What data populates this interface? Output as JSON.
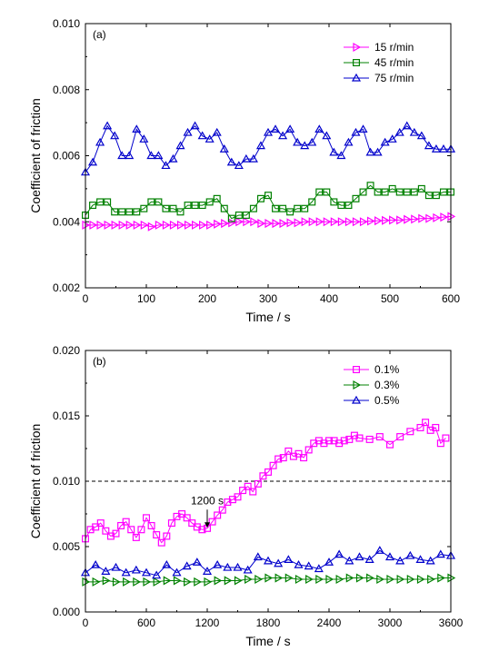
{
  "chart_data": [
    {
      "type": "line",
      "panel_label": "(a)",
      "xlabel": "Time / s",
      "ylabel": "Coefficient of friction",
      "xlim": [
        0,
        600
      ],
      "ylim": [
        0.002,
        0.01
      ],
      "xticks": [
        0,
        100,
        200,
        300,
        400,
        500,
        600
      ],
      "yticks": [
        0.002,
        0.004,
        0.006,
        0.008,
        0.01
      ],
      "ytick_labels": [
        "0.002",
        "0.004",
        "0.006",
        "0.008",
        "0.010"
      ],
      "legend_position": "top-right",
      "x": [
        0,
        12,
        24,
        36,
        48,
        60,
        72,
        84,
        96,
        108,
        120,
        132,
        144,
        156,
        168,
        180,
        192,
        204,
        216,
        228,
        240,
        252,
        264,
        276,
        288,
        300,
        312,
        324,
        336,
        348,
        360,
        372,
        384,
        396,
        408,
        420,
        432,
        444,
        456,
        468,
        480,
        492,
        504,
        516,
        528,
        540,
        552,
        564,
        576,
        588,
        600
      ],
      "series": [
        {
          "name": "15 r/min",
          "color": "#ff00ff",
          "marker": "triangle-right",
          "values": [
            0.0039,
            0.0039,
            0.0039,
            0.0039,
            0.0039,
            0.0039,
            0.0039,
            0.0039,
            0.0039,
            0.00385,
            0.0039,
            0.0039,
            0.0039,
            0.0039,
            0.0039,
            0.0039,
            0.0039,
            0.0039,
            0.00393,
            0.00395,
            0.00397,
            0.004,
            0.004,
            0.004,
            0.00395,
            0.00395,
            0.00395,
            0.00395,
            0.00397,
            0.00397,
            0.004,
            0.004,
            0.004,
            0.004,
            0.004,
            0.004,
            0.004,
            0.004,
            0.004,
            0.00402,
            0.00403,
            0.00404,
            0.00405,
            0.00405,
            0.00407,
            0.00408,
            0.0041,
            0.0041,
            0.00412,
            0.00414,
            0.00416
          ]
        },
        {
          "name": "45 r/min",
          "color": "#008000",
          "marker": "square",
          "values": [
            0.0042,
            0.0045,
            0.0046,
            0.0046,
            0.0043,
            0.0043,
            0.0043,
            0.0043,
            0.0044,
            0.0046,
            0.0046,
            0.0044,
            0.0044,
            0.0043,
            0.0045,
            0.0045,
            0.0045,
            0.0046,
            0.0047,
            0.0044,
            0.0041,
            0.0042,
            0.0042,
            0.0044,
            0.0047,
            0.0048,
            0.0044,
            0.0044,
            0.0043,
            0.0044,
            0.0044,
            0.0046,
            0.0049,
            0.0049,
            0.0046,
            0.0045,
            0.0045,
            0.0047,
            0.0049,
            0.0051,
            0.0049,
            0.0049,
            0.005,
            0.0049,
            0.0049,
            0.0049,
            0.005,
            0.0048,
            0.0048,
            0.0049,
            0.0049
          ]
        },
        {
          "name": "75 r/min",
          "color": "#0000cc",
          "marker": "triangle-up",
          "values": [
            0.0055,
            0.0058,
            0.0064,
            0.0069,
            0.0066,
            0.006,
            0.006,
            0.0068,
            0.0065,
            0.006,
            0.006,
            0.0057,
            0.0059,
            0.0063,
            0.0067,
            0.0069,
            0.0066,
            0.0065,
            0.0067,
            0.0062,
            0.0058,
            0.0057,
            0.0059,
            0.0059,
            0.0063,
            0.0067,
            0.0068,
            0.0066,
            0.0068,
            0.0064,
            0.0063,
            0.0064,
            0.0068,
            0.0066,
            0.0061,
            0.006,
            0.0064,
            0.0067,
            0.0068,
            0.0061,
            0.0061,
            0.0064,
            0.0065,
            0.0067,
            0.0069,
            0.0067,
            0.0066,
            0.0063,
            0.0062,
            0.0062,
            0.0062
          ]
        }
      ]
    },
    {
      "type": "line",
      "panel_label": "(b)",
      "xlabel": "Time / s",
      "ylabel": "Coefficient of friction",
      "xlim": [
        0,
        3600
      ],
      "ylim": [
        0.0,
        0.02
      ],
      "xticks": [
        0,
        600,
        1200,
        1800,
        2400,
        3000,
        3600
      ],
      "yticks": [
        0.0,
        0.005,
        0.01,
        0.015,
        0.02
      ],
      "ytick_labels": [
        "0.000",
        "0.005",
        "0.010",
        "0.015",
        "0.020"
      ],
      "legend_position": "top-right",
      "reference_line": 0.01,
      "annotation": {
        "text": "1200 s",
        "x": 1200,
        "y": 0.0063
      },
      "series": [
        {
          "name": "0.1%",
          "color": "#ff00ff",
          "marker": "square",
          "x": [
            0,
            50,
            100,
            150,
            200,
            250,
            300,
            350,
            400,
            450,
            500,
            550,
            600,
            650,
            700,
            750,
            800,
            850,
            900,
            950,
            1000,
            1050,
            1100,
            1150,
            1200,
            1250,
            1300,
            1350,
            1400,
            1450,
            1500,
            1550,
            1600,
            1650,
            1700,
            1750,
            1800,
            1850,
            1900,
            1950,
            2000,
            2050,
            2100,
            2150,
            2200,
            2250,
            2300,
            2350,
            2400,
            2450,
            2500,
            2550,
            2600,
            2650,
            2700,
            2800,
            2900,
            3000,
            3100,
            3200,
            3300,
            3350,
            3400,
            3450,
            3500,
            3550
          ],
          "values": [
            0.0056,
            0.0063,
            0.0065,
            0.0068,
            0.0062,
            0.0058,
            0.006,
            0.0066,
            0.0069,
            0.0063,
            0.0057,
            0.0063,
            0.0072,
            0.0066,
            0.0059,
            0.0053,
            0.0058,
            0.0068,
            0.0073,
            0.0075,
            0.0072,
            0.0068,
            0.0065,
            0.0063,
            0.0064,
            0.0069,
            0.0074,
            0.0078,
            0.0084,
            0.0086,
            0.0088,
            0.0093,
            0.0096,
            0.0092,
            0.0098,
            0.0104,
            0.0107,
            0.0112,
            0.0117,
            0.0118,
            0.0123,
            0.0119,
            0.0121,
            0.0118,
            0.0124,
            0.0129,
            0.0131,
            0.0129,
            0.0131,
            0.0131,
            0.0129,
            0.0131,
            0.0132,
            0.0135,
            0.0133,
            0.0132,
            0.0134,
            0.0128,
            0.0134,
            0.0138,
            0.0141,
            0.0145,
            0.0139,
            0.0141,
            0.0129,
            0.0133
          ]
        },
        {
          "name": "0.3%",
          "color": "#008000",
          "marker": "triangle-right",
          "x": [
            0,
            100,
            200,
            300,
            400,
            500,
            600,
            700,
            800,
            900,
            1000,
            1100,
            1200,
            1300,
            1400,
            1500,
            1600,
            1700,
            1800,
            1900,
            2000,
            2100,
            2200,
            2300,
            2400,
            2500,
            2600,
            2700,
            2800,
            2900,
            3000,
            3100,
            3200,
            3300,
            3400,
            3500,
            3600
          ],
          "values": [
            0.0023,
            0.0023,
            0.0024,
            0.0023,
            0.0023,
            0.0023,
            0.0023,
            0.0023,
            0.0024,
            0.0024,
            0.0023,
            0.0023,
            0.0023,
            0.0024,
            0.0024,
            0.0024,
            0.0025,
            0.0025,
            0.0026,
            0.0026,
            0.0026,
            0.0025,
            0.0025,
            0.0025,
            0.0025,
            0.0025,
            0.0026,
            0.0026,
            0.0026,
            0.0025,
            0.0025,
            0.0025,
            0.0025,
            0.0025,
            0.0025,
            0.0026,
            0.0026
          ]
        },
        {
          "name": "0.5%",
          "color": "#0000cc",
          "marker": "triangle-up",
          "x": [
            0,
            100,
            200,
            300,
            400,
            500,
            600,
            700,
            800,
            900,
            1000,
            1100,
            1200,
            1300,
            1400,
            1500,
            1600,
            1700,
            1800,
            1900,
            2000,
            2100,
            2200,
            2300,
            2400,
            2500,
            2600,
            2700,
            2800,
            2900,
            3000,
            3100,
            3200,
            3300,
            3400,
            3500,
            3600
          ],
          "values": [
            0.003,
            0.0036,
            0.0031,
            0.0034,
            0.003,
            0.0032,
            0.003,
            0.0028,
            0.0036,
            0.003,
            0.0035,
            0.0038,
            0.0031,
            0.0036,
            0.0034,
            0.0034,
            0.0032,
            0.0042,
            0.0039,
            0.0037,
            0.004,
            0.0036,
            0.0035,
            0.0033,
            0.0038,
            0.0044,
            0.0039,
            0.0042,
            0.004,
            0.0047,
            0.0042,
            0.0039,
            0.0043,
            0.004,
            0.0039,
            0.0044,
            0.0043
          ]
        }
      ]
    }
  ]
}
